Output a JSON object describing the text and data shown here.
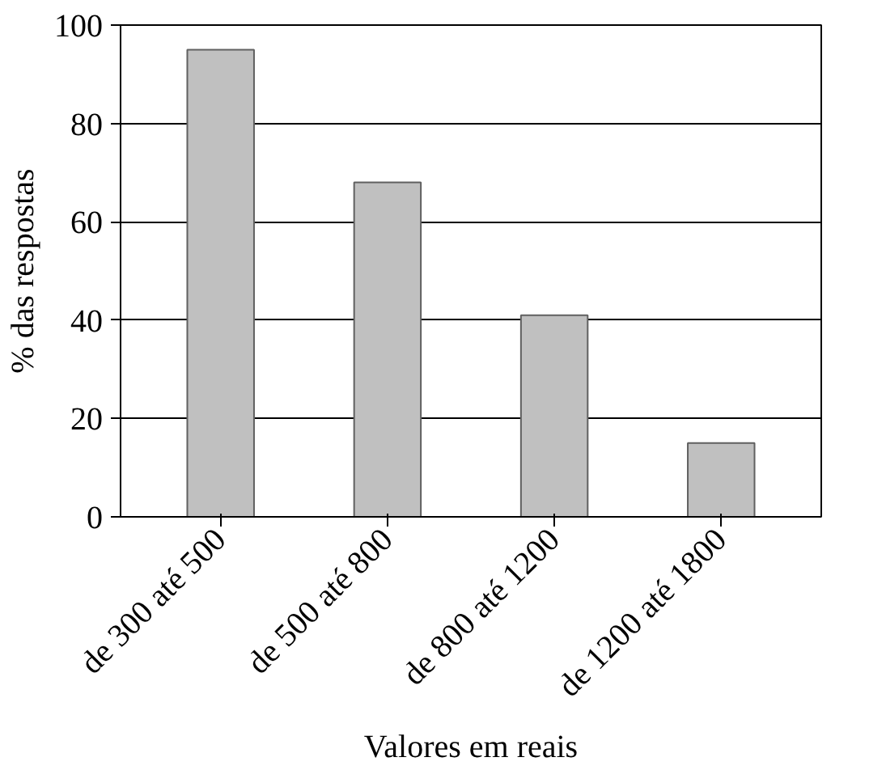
{
  "chart_data": {
    "type": "bar",
    "xlabel": "Valores em reais",
    "ylabel": "% das respostas",
    "categories": [
      "de 300 até 500",
      "de 500 até 800",
      "de 800 até 1200",
      "de 1200 até 1800"
    ],
    "values": [
      95,
      68,
      41,
      15
    ],
    "color": "#c0c0c0",
    "ylim": [
      0,
      100
    ],
    "yticks": [
      0,
      20,
      40,
      60,
      80,
      100
    ],
    "grid": "y"
  }
}
